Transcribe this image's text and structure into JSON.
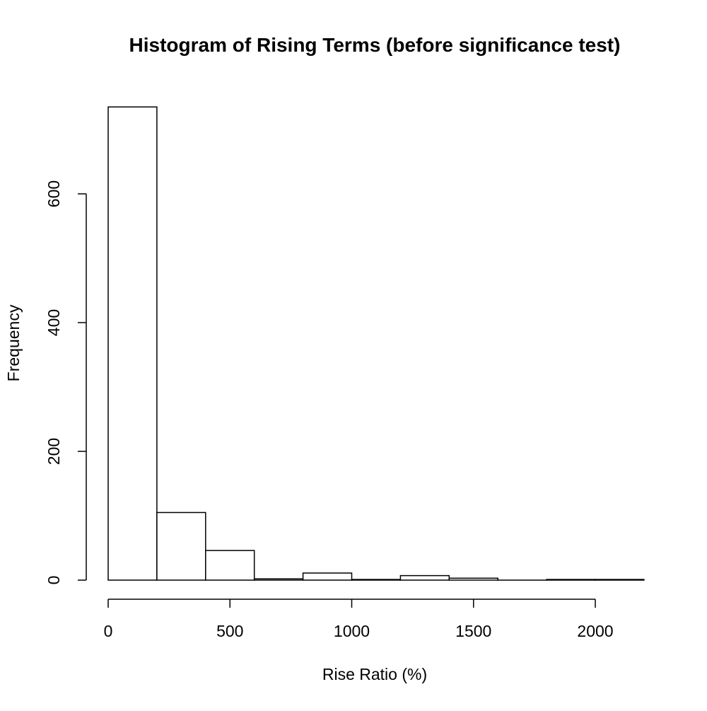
{
  "chart_data": {
    "type": "bar",
    "title": "Histogram of Rising Terms (before significance test)",
    "xlabel": "Rise Ratio (%)",
    "ylabel": "Frequency",
    "xlim": [
      0,
      2200
    ],
    "ylim": [
      0,
      740
    ],
    "bins": [
      {
        "start": 0,
        "end": 200,
        "count": 735
      },
      {
        "start": 200,
        "end": 400,
        "count": 105
      },
      {
        "start": 400,
        "end": 600,
        "count": 46
      },
      {
        "start": 600,
        "end": 800,
        "count": 2
      },
      {
        "start": 800,
        "end": 1000,
        "count": 11
      },
      {
        "start": 1000,
        "end": 1200,
        "count": 1
      },
      {
        "start": 1200,
        "end": 1400,
        "count": 7
      },
      {
        "start": 1400,
        "end": 1600,
        "count": 3
      },
      {
        "start": 1600,
        "end": 1800,
        "count": 0
      },
      {
        "start": 1800,
        "end": 2000,
        "count": 1
      },
      {
        "start": 2000,
        "end": 2200,
        "count": 1
      }
    ],
    "x_ticks": [
      {
        "value": 0,
        "label": "0"
      },
      {
        "value": 500,
        "label": "500"
      },
      {
        "value": 1000,
        "label": "1000"
      },
      {
        "value": 1500,
        "label": "1500"
      },
      {
        "value": 2000,
        "label": "2000"
      }
    ],
    "y_ticks": [
      {
        "value": 0,
        "label": "0"
      },
      {
        "value": 200,
        "label": "200"
      },
      {
        "value": 400,
        "label": "400"
      },
      {
        "value": 600,
        "label": "600"
      }
    ],
    "grid": false,
    "legend": "none"
  }
}
